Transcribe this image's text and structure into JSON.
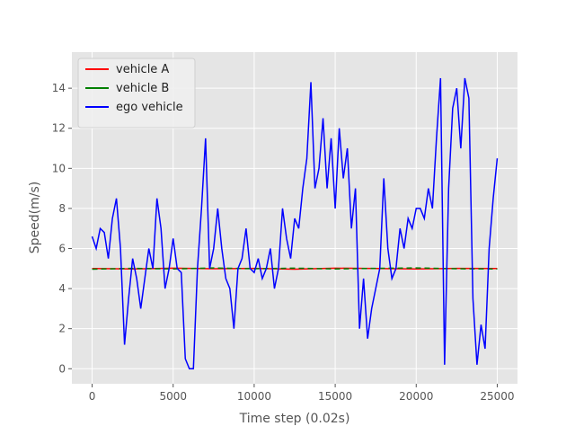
{
  "chart_data": {
    "type": "line",
    "xlabel": "Time step (0.02s)",
    "ylabel": "Speed(m/s)",
    "xlim": [
      -1250,
      26250
    ],
    "ylim": [
      -0.75,
      15.8
    ],
    "xticks": [
      0,
      5000,
      10000,
      15000,
      20000,
      25000
    ],
    "yticks": [
      0,
      2,
      4,
      6,
      8,
      10,
      12,
      14
    ],
    "grid": true,
    "legend": "upper left",
    "series": [
      {
        "name": "vehicle A",
        "color": "#ff0000",
        "x": [
          0,
          2500,
          5000,
          7500,
          10000,
          12500,
          15000,
          17500,
          20000,
          22500,
          25000
        ],
        "values": [
          5.0,
          4.98,
          5.02,
          4.99,
          5.01,
          4.97,
          5.02,
          5.0,
          4.98,
          5.01,
          5.0
        ]
      },
      {
        "name": "vehicle B",
        "color": "#008000",
        "x": [
          0,
          2500,
          5000,
          7500,
          10000,
          12500,
          15000,
          17500,
          20000,
          22500,
          25000
        ],
        "values": [
          4.97,
          5.01,
          4.98,
          5.03,
          4.99,
          5.02,
          4.98,
          5.01,
          5.03,
          4.99,
          4.98
        ]
      },
      {
        "name": "ego vehicle",
        "color": "#0000ff",
        "x": [
          0,
          250,
          500,
          750,
          1000,
          1250,
          1500,
          1750,
          2000,
          2250,
          2500,
          2750,
          3000,
          3250,
          3500,
          3750,
          4000,
          4250,
          4500,
          4750,
          5000,
          5250,
          5500,
          5750,
          6000,
          6250,
          6500,
          6750,
          7000,
          7250,
          7500,
          7750,
          8000,
          8250,
          8500,
          8750,
          9000,
          9250,
          9500,
          9750,
          10000,
          10250,
          10500,
          10750,
          11000,
          11250,
          11500,
          11750,
          12000,
          12250,
          12500,
          12750,
          13000,
          13250,
          13500,
          13750,
          14000,
          14250,
          14500,
          14750,
          15000,
          15250,
          15500,
          15750,
          16000,
          16250,
          16500,
          16750,
          17000,
          17250,
          17500,
          17750,
          18000,
          18250,
          18500,
          18750,
          19000,
          19250,
          19500,
          19750,
          20000,
          20250,
          20500,
          20750,
          21000,
          21250,
          21500,
          21750,
          22000,
          22250,
          22500,
          22750,
          23000,
          23250,
          23500,
          23750,
          24000,
          24250,
          24500,
          24750,
          25000
        ],
        "values": [
          6.6,
          6.0,
          7.0,
          6.8,
          5.5,
          7.5,
          8.5,
          6.0,
          1.2,
          3.5,
          5.5,
          4.5,
          3.0,
          4.5,
          6.0,
          5.0,
          8.5,
          7.0,
          4.0,
          5.0,
          6.5,
          5.0,
          4.8,
          0.5,
          0,
          0,
          5.0,
          8.0,
          11.5,
          5.0,
          6.0,
          8.0,
          6.0,
          4.5,
          4.0,
          2.0,
          5.0,
          5.5,
          7.0,
          5.0,
          4.8,
          5.5,
          4.5,
          5.0,
          6.0,
          4.0,
          5.0,
          8.0,
          6.5,
          5.5,
          7.5,
          7.0,
          9.0,
          10.5,
          14.3,
          9.0,
          10.0,
          12.5,
          9.0,
          11.5,
          8.0,
          12.0,
          9.5,
          11.0,
          7.0,
          9.0,
          2.0,
          4.5,
          1.5,
          3.0,
          4.0,
          5.0,
          9.5,
          6.0,
          4.5,
          5.0,
          7.0,
          6.0,
          7.5,
          7.0,
          8.0,
          8.0,
          7.5,
          9.0,
          8.0,
          11.5,
          14.5,
          0.2,
          9.0,
          13.0,
          14.0,
          11.0,
          14.5,
          13.5,
          3.5,
          0.2,
          2.2,
          1.0,
          6.0,
          8.5,
          10.5
        ]
      }
    ]
  }
}
